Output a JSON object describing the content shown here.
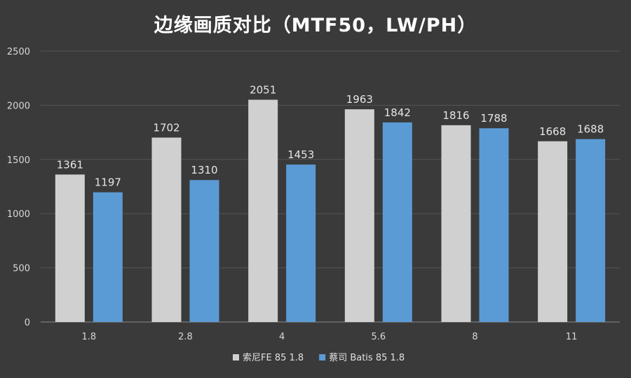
{
  "chart_data": {
    "type": "bar",
    "title": "边缘画质对比（MTF50，LW/PH）",
    "categories": [
      "1.8",
      "2.8",
      "4",
      "5.6",
      "8",
      "11"
    ],
    "series": [
      {
        "name": "索尼FE 85 1.8",
        "values": [
          1361,
          1702,
          2051,
          1963,
          1816,
          1668
        ],
        "color": "#d0d0d0"
      },
      {
        "name": "蔡司 Batis 85 1.8",
        "values": [
          1197,
          1310,
          1453,
          1842,
          1788,
          1688
        ],
        "color": "#5b9bd5"
      }
    ],
    "ylim": [
      0,
      2500
    ],
    "yticks": [
      0,
      500,
      1000,
      1500,
      2000,
      2500
    ],
    "grid": true,
    "legend_position": "bottom-center",
    "data_labels": true
  }
}
